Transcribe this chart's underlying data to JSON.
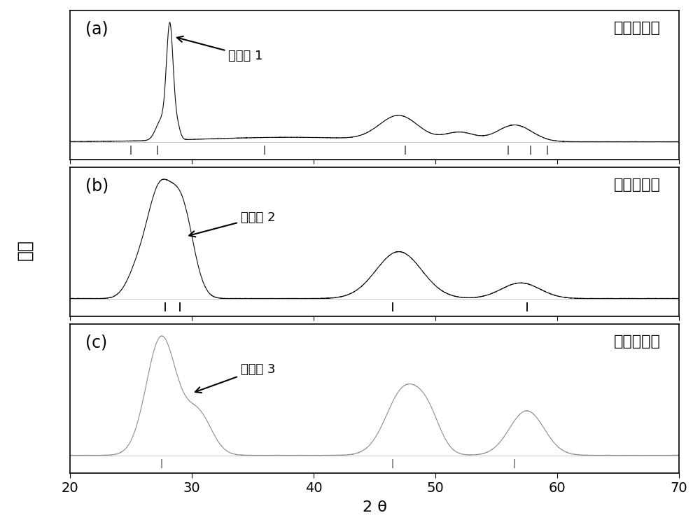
{
  "xlabel": "2 θ",
  "ylabel": "强度",
  "xlim": [
    20,
    70
  ],
  "xticks": [
    20,
    30,
    40,
    50,
    60,
    70
  ],
  "panel_labels": [
    "(a)",
    "(b)",
    "(c)"
  ],
  "panel_titles": [
    "纤锌矿结构",
    "黄铜矿结构",
    "闪锌矿结构"
  ],
  "annotations": [
    "实施例 1",
    "实施例 2",
    "实施例 3"
  ],
  "line_color_a": "#000000",
  "line_color_b": "#000000",
  "line_color_c": "#888888",
  "markers_a": [
    25.0,
    27.2,
    36.0,
    47.5,
    56.0,
    57.8,
    59.2
  ],
  "markers_b": [
    27.8,
    29.0,
    46.5,
    57.5
  ],
  "markers_c": [
    27.5,
    46.5,
    56.5
  ],
  "marker_color_a": "#666666",
  "marker_color_b": "#000000",
  "marker_color_c": "#888888"
}
